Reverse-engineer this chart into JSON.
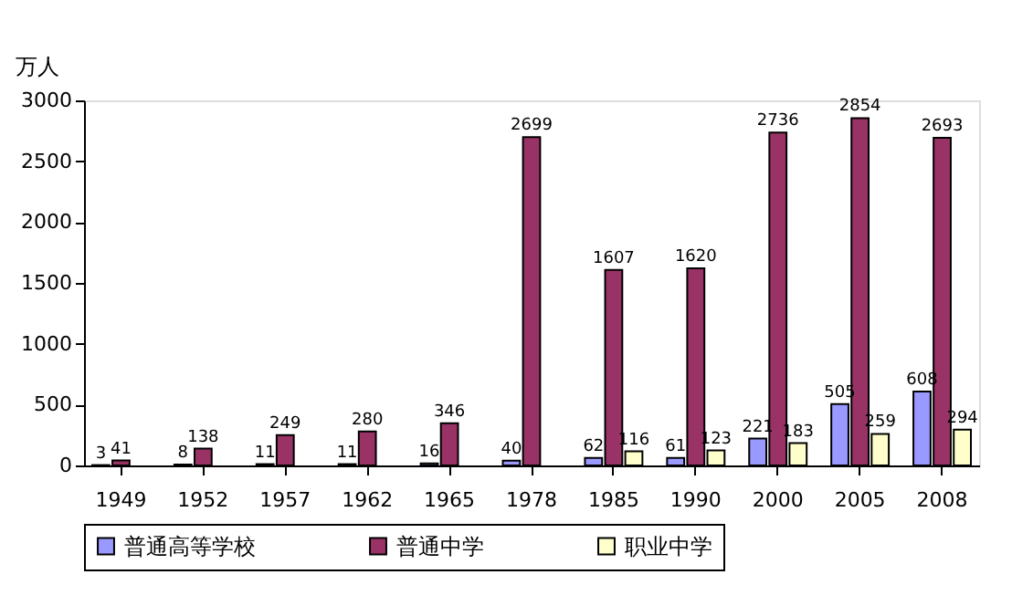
{
  "chart_data": {
    "type": "bar",
    "ylabel": "万人",
    "categories": [
      "1949",
      "1952",
      "1957",
      "1962",
      "1965",
      "1978",
      "1985",
      "1990",
      "2000",
      "2005",
      "2008"
    ],
    "series": [
      {
        "name": "普通高等学校",
        "color": "#9999ff",
        "values": [
          3,
          8,
          11,
          11,
          16,
          40,
          62,
          61,
          221,
          505,
          608
        ]
      },
      {
        "name": "普通中学",
        "color": "#993366",
        "values": [
          41,
          138,
          249,
          280,
          346,
          2699,
          1607,
          1620,
          2736,
          2854,
          2693
        ]
      },
      {
        "name": "职业中学",
        "color": "#ffffcc",
        "values": [
          null,
          null,
          null,
          null,
          null,
          null,
          116,
          123,
          183,
          259,
          294
        ]
      }
    ],
    "ylim": [
      0,
      3000
    ],
    "yticks": [
      0,
      500,
      1000,
      1500,
      2000,
      2500,
      3000
    ],
    "grid": false,
    "legend": "bottom",
    "data_labels": true
  }
}
